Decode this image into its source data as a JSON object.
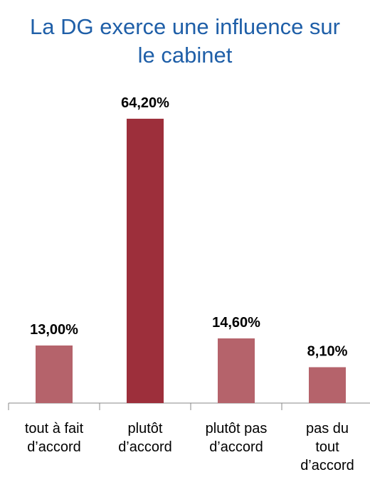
{
  "chart_data": {
    "type": "bar",
    "title": "La DG exerce une influence sur le cabinet",
    "categories": [
      "tout à fait d’accord",
      "plutôt d’accord",
      "plutôt pas d’accord",
      "pas du tout d’accord"
    ],
    "values": [
      13.0,
      64.2,
      14.6,
      8.1
    ],
    "value_labels": [
      "13,00%",
      "64,20%",
      "14,60%",
      "8,10%"
    ],
    "colors": [
      "#b5636b",
      "#9d2f3b",
      "#b5636b",
      "#b5636b"
    ]
  }
}
